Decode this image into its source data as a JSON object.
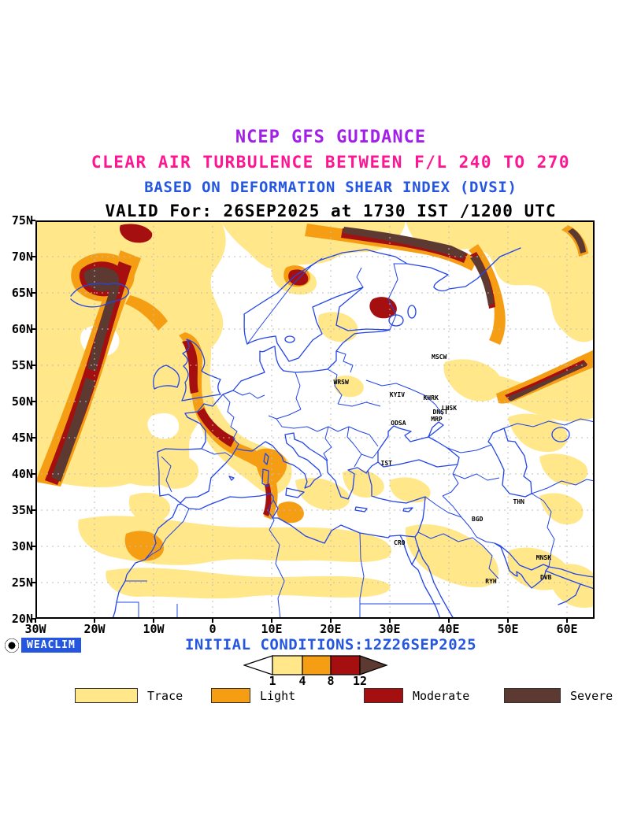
{
  "colors": {
    "title_purple": "#A21FE8",
    "title_pink": "#FF1493",
    "title_blue": "#2456E0",
    "coast_blue": "#2244E8",
    "grid_gray": "#bdbdbd",
    "trace": "#FFE78A",
    "light": "#F59E13",
    "moderate": "#A50F0F",
    "severe": "#5C3A31",
    "logo_blue": "#2456E0"
  },
  "titles": {
    "line1": "NCEP GFS GUIDANCE",
    "line2": "CLEAR AIR TURBULENCE BETWEEN F/L 240 TO 270",
    "line3": "BASED ON DEFORMATION SHEAR INDEX (DVSI)",
    "line4": "VALID For: 26SEP2025 at 1730 IST /1200 UTC"
  },
  "map": {
    "y_ticks": [
      "75N",
      "70N",
      "65N",
      "60N",
      "55N",
      "50N",
      "45N",
      "40N",
      "35N",
      "30N",
      "25N",
      "20N"
    ],
    "x_ticks": [
      "30W",
      "20W",
      "10W",
      "0",
      "10E",
      "20E",
      "30E",
      "40E",
      "50E",
      "60E"
    ],
    "lon_range": [
      -30,
      64.7
    ],
    "lat_range": [
      20,
      75
    ],
    "cities": [
      {
        "code": "MSCW",
        "lon": 37.6,
        "lat": 55.7
      },
      {
        "code": "WRSW",
        "lon": 21.0,
        "lat": 52.2
      },
      {
        "code": "KYIV",
        "lon": 30.5,
        "lat": 50.45
      },
      {
        "code": "KHRK",
        "lon": 36.2,
        "lat": 50.0
      },
      {
        "code": "LHSK",
        "lon": 39.3,
        "lat": 48.6
      },
      {
        "code": "DNST",
        "lon": 37.8,
        "lat": 48.0
      },
      {
        "code": "MRP",
        "lon": 37.5,
        "lat": 47.1
      },
      {
        "code": "ODSA",
        "lon": 30.7,
        "lat": 46.5
      },
      {
        "code": "IST",
        "lon": 29.0,
        "lat": 41.0
      },
      {
        "code": "THN",
        "lon": 51.4,
        "lat": 35.7
      },
      {
        "code": "BGD",
        "lon": 44.4,
        "lat": 33.3
      },
      {
        "code": "CRO",
        "lon": 31.2,
        "lat": 30.0
      },
      {
        "code": "RYH",
        "lon": 46.7,
        "lat": 24.7
      },
      {
        "code": "MNSK",
        "lon": 55.3,
        "lat": 27.9
      },
      {
        "code": "DVB",
        "lon": 56.0,
        "lat": 25.2
      }
    ]
  },
  "footer": {
    "logo_text": "WEACLIM",
    "initial_conditions": "INITIAL CONDITIONS:12Z26SEP2025"
  },
  "colorbar": {
    "segment_colors": [
      "#FFFFFF",
      "#FFE78A",
      "#F59E13",
      "#A50F0F",
      "#5C3A31"
    ],
    "tick_labels": [
      "1",
      "4",
      "8",
      "12"
    ]
  },
  "legend": [
    {
      "label": "Trace",
      "color": "#FFE78A"
    },
    {
      "label": "Light",
      "color": "#F59E13"
    },
    {
      "label": "Moderate",
      "color": "#A50F0F"
    },
    {
      "label": "Severe",
      "color": "#5C3A31"
    }
  ]
}
